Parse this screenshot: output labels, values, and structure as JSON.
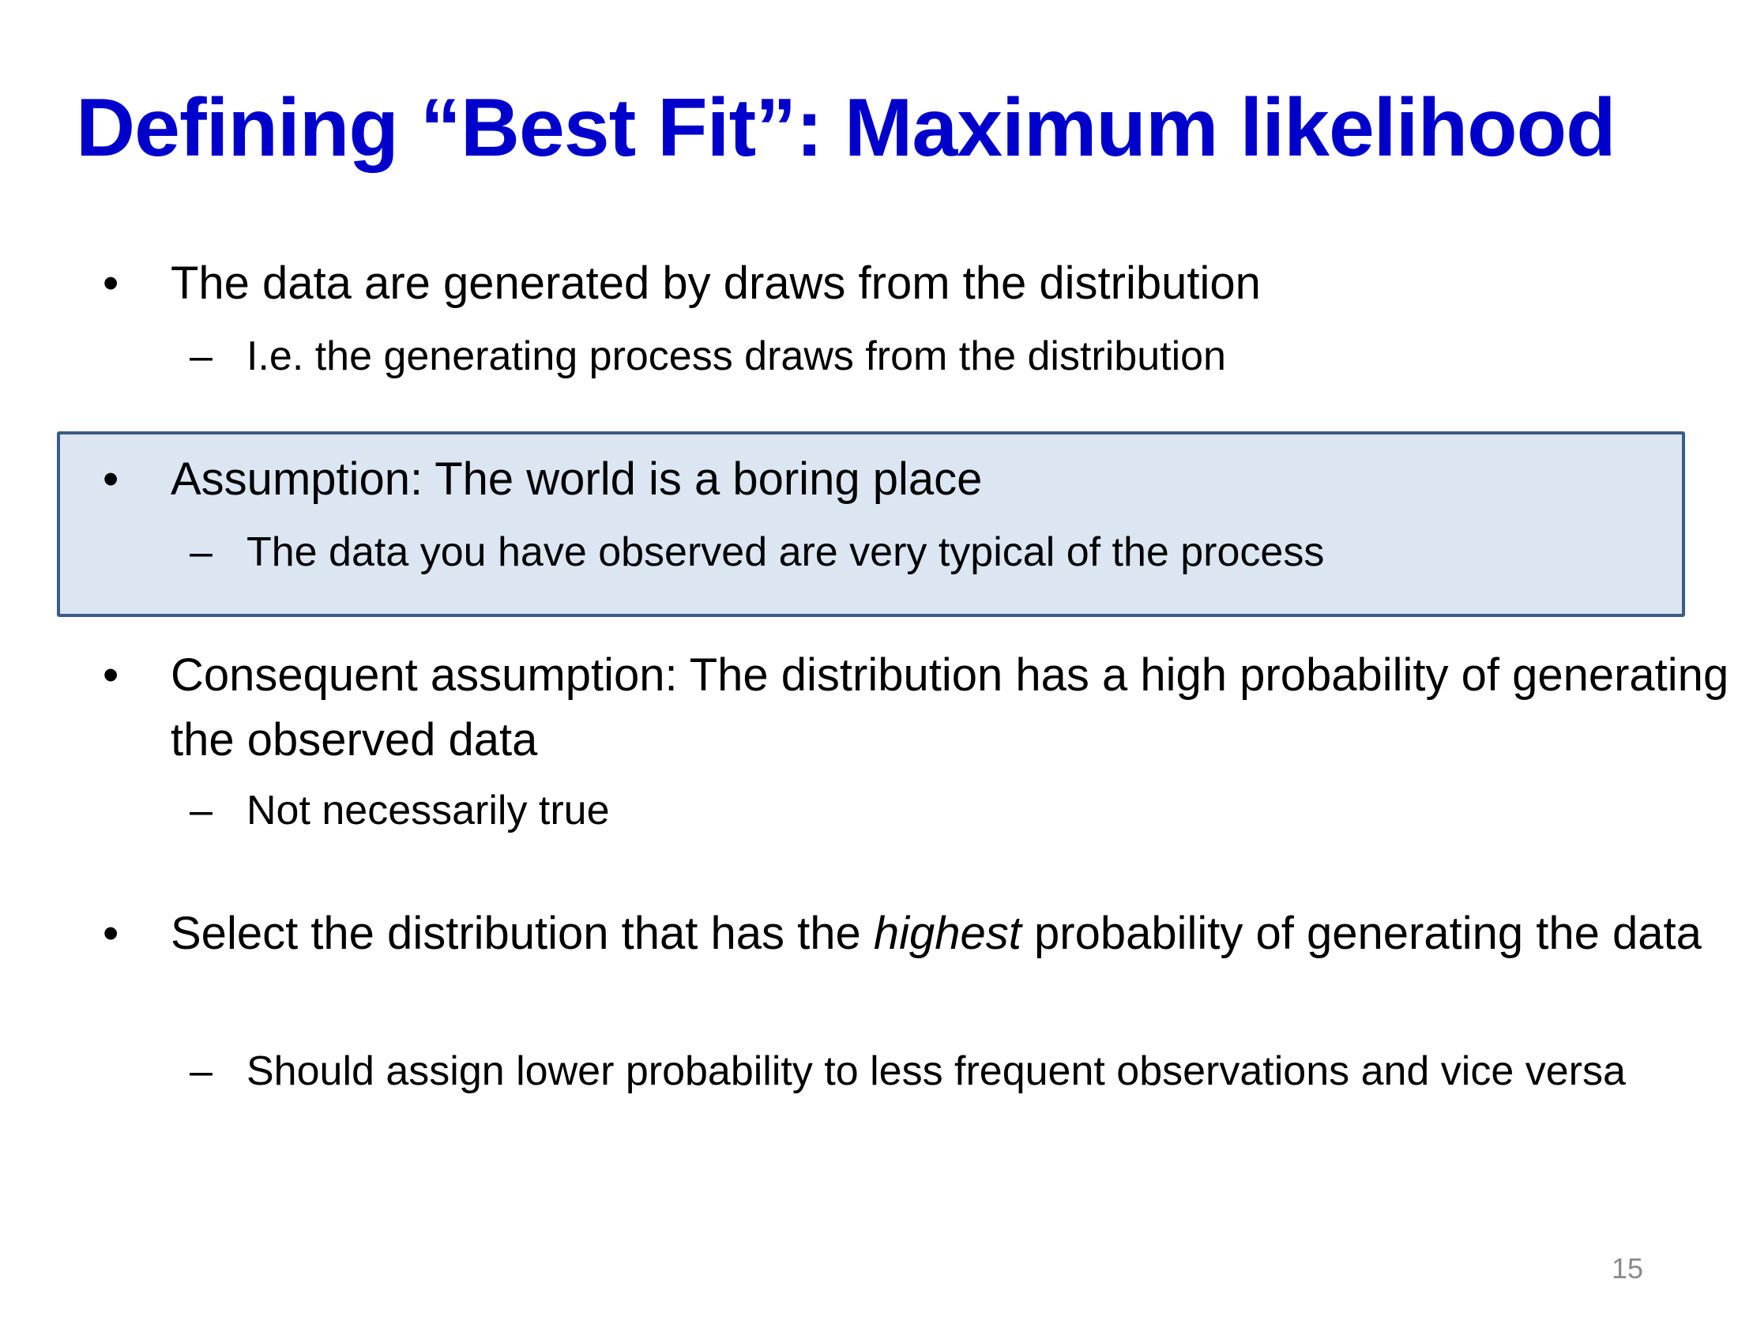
{
  "slide": {
    "title": "Defining “Best Fit”: Maximum likelihood",
    "bullet_marker": "•",
    "sub_marker": "–",
    "bullets": [
      {
        "text": "The data are generated by draws from the distribution",
        "sub": "I.e. the generating process draws from the distribution"
      },
      {
        "text": "Assumption: The world is a boring place",
        "sub": "The data you have observed are very typical of the process",
        "highlighted": true
      },
      {
        "text": "Consequent assumption: The distribution has a high probability of generating the observed data",
        "sub": "Not necessarily true"
      },
      {
        "text_before": "Select the distribution that has the ",
        "text_emphasis": "highest",
        "text_after": " probability of generating the data",
        "sub": "Should assign lower probability to less frequent observations and vice versa"
      }
    ],
    "page_number": "15"
  },
  "colors": {
    "title": "#0000cc",
    "highlight_fill": "#dbe6f2",
    "highlight_border": "#3b5b8a",
    "page_number": "#8a8a8a"
  }
}
